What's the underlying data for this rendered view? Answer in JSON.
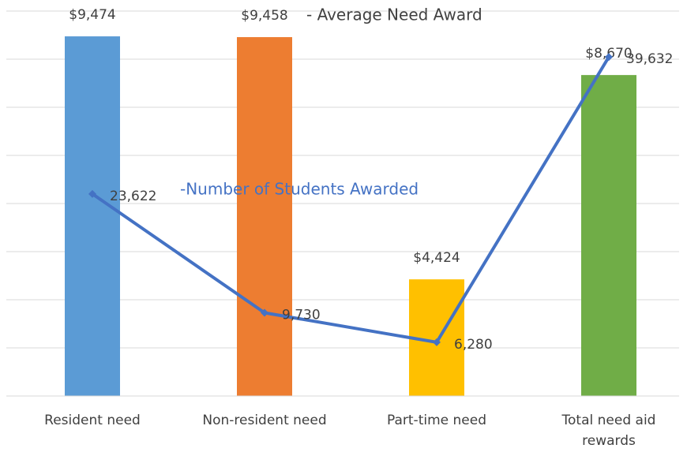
{
  "chart_data": {
    "type": "bar",
    "categories": [
      "Resident need",
      "Non-resident need",
      "Part-time need",
      "Total need aid rewards"
    ],
    "series": [
      {
        "name": "- Average Need Award",
        "type": "bar",
        "colors": [
          "#5b9bd5",
          "#ed7d31",
          "#ffc000",
          "#70ad47"
        ],
        "values": [
          9474,
          9458,
          4424,
          8670
        ],
        "value_labels": [
          "$9,474",
          "$9,458",
          "$4,424",
          "$8,670"
        ]
      },
      {
        "name": "-Number of Students Awarded",
        "type": "line",
        "axis": "y2",
        "color": "#4472c4",
        "values": [
          23622,
          9730,
          6280,
          39632
        ],
        "value_labels": [
          "23,622",
          "9,730",
          "6,280",
          "39,632"
        ]
      }
    ],
    "ylim": [
      2000,
      10000
    ],
    "yticks": [
      2000,
      3000,
      4000,
      5000,
      6000,
      7000,
      8000,
      9000,
      10000
    ],
    "y2lim": [
      0,
      45000
    ],
    "grid": true
  }
}
